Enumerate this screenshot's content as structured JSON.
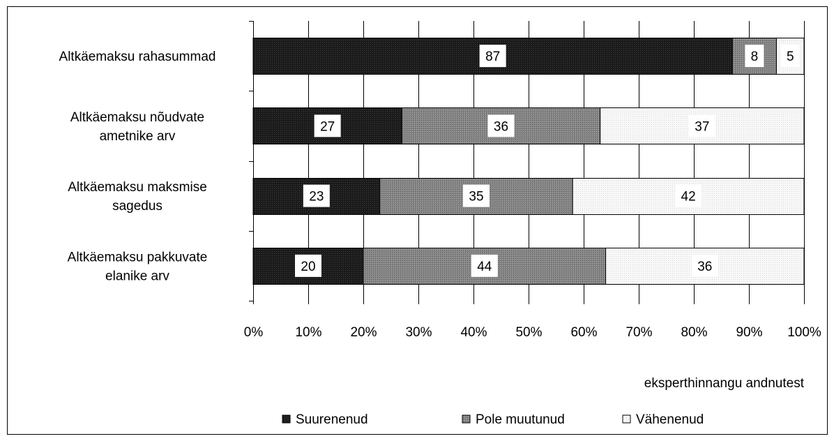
{
  "chart_data": {
    "type": "bar",
    "orientation": "horizontal",
    "stacked": true,
    "percent_stacked": true,
    "categories": [
      "Altkäemaksu rahasummad",
      "Altkäemaksu nõudvate ametnike arv",
      "Altkäemaksu maksmise sagedus",
      "Altkäemaksu pakkuvate elanike arv"
    ],
    "category_lines": [
      [
        "Altkäemaksu rahasummad"
      ],
      [
        "Altkäemaksu nõudvate",
        "ametnike arv"
      ],
      [
        "Altkäemaksu maksmise",
        "sagedus"
      ],
      [
        "Altkäemaksu pakkuvate",
        "elanike arv"
      ]
    ],
    "series": [
      {
        "name": "Suurenenud",
        "values": [
          87,
          27,
          23,
          20
        ],
        "color": "#111111"
      },
      {
        "name": "Pole muutunud",
        "values": [
          8,
          36,
          35,
          44
        ],
        "color": "#808080"
      },
      {
        "name": "Vähenenud",
        "values": [
          5,
          37,
          42,
          36
        ],
        "color": "#f4f4f4"
      }
    ],
    "xlabel": "eksperthinnangu andnutest",
    "xlim": [
      0,
      100
    ],
    "x_ticks": [
      "0%",
      "10%",
      "20%",
      "30%",
      "40%",
      "50%",
      "60%",
      "70%",
      "80%",
      "90%",
      "100%"
    ],
    "grid": true,
    "legend_position": "bottom",
    "data_labels": true
  }
}
